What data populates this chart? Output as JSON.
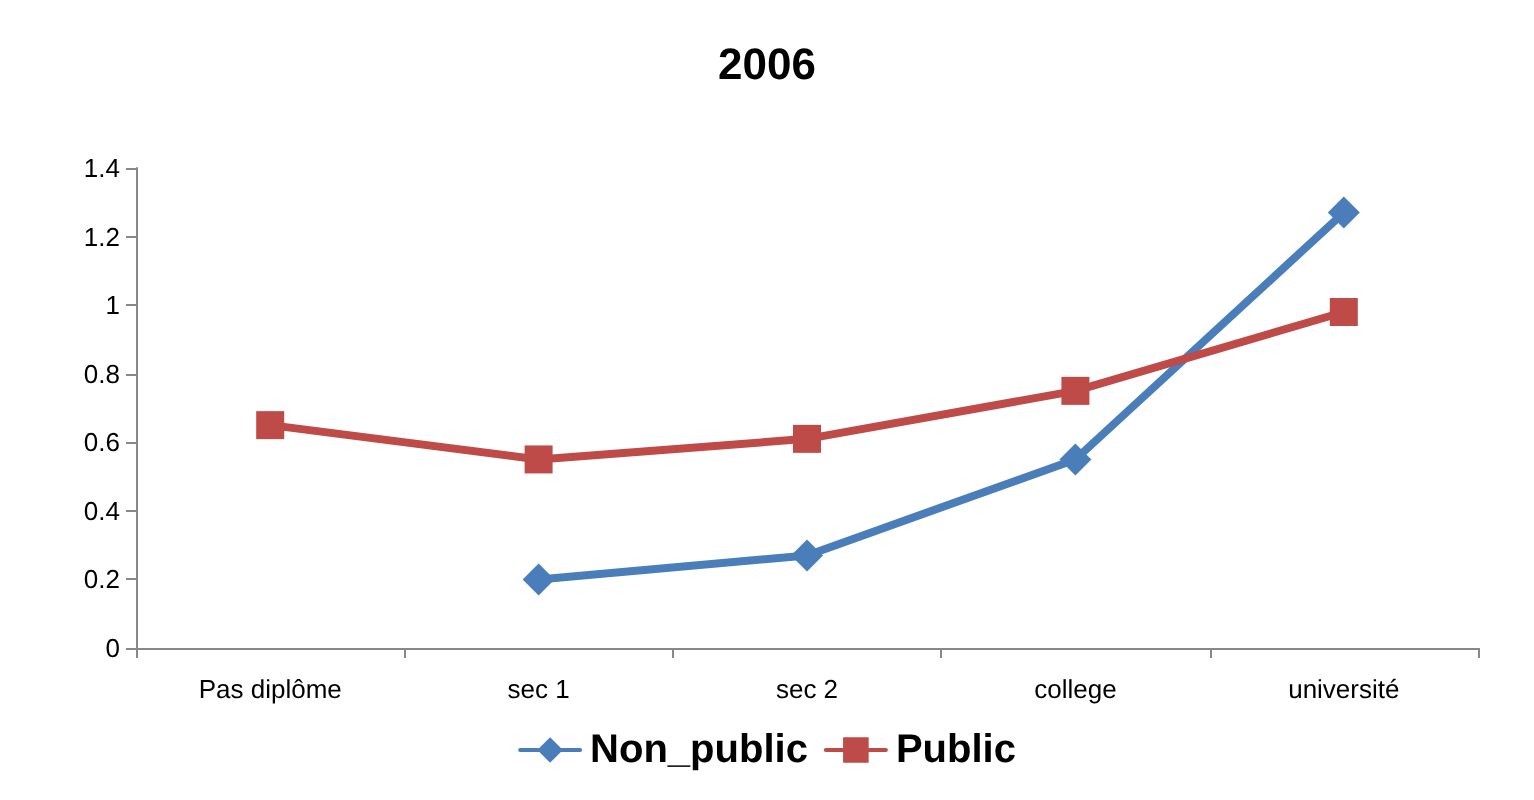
{
  "chart_data": {
    "type": "line",
    "title": "2006",
    "categories": [
      "Pas diplôme",
      "sec 1",
      "sec 2",
      "college",
      "université"
    ],
    "series": [
      {
        "name": "Non_public",
        "color": "#4a7ebb",
        "marker": "diamond",
        "values": [
          null,
          0.2,
          0.27,
          0.55,
          1.27
        ]
      },
      {
        "name": "Public",
        "color": "#be4b48",
        "marker": "square",
        "values": [
          0.65,
          0.55,
          0.61,
          0.75,
          0.98
        ]
      }
    ],
    "ylim": [
      0,
      1.4
    ],
    "yticks": [
      0,
      0.2,
      0.4,
      0.6,
      0.8,
      1,
      1.2,
      1.4
    ],
    "grid": false,
    "legend": "bottom",
    "line_style": "solid"
  }
}
